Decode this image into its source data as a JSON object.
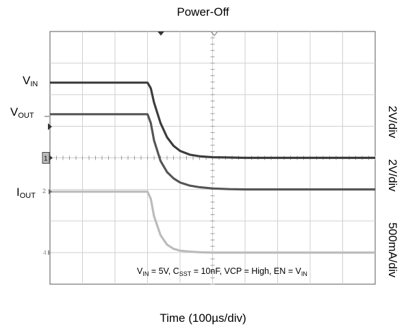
{
  "chart_data": {
    "type": "line",
    "title": "Power-Off",
    "xlabel": "Time (100µs/div)",
    "ylabel": "",
    "grid": true,
    "divisions": {
      "x": 10,
      "y": 8
    },
    "x": [
      0,
      0.5,
      1,
      1.5,
      2,
      2.5,
      3,
      3.1,
      3.2,
      3.4,
      3.6,
      3.8,
      4.0,
      4.3,
      4.6,
      5.0,
      5.5,
      6,
      7,
      8,
      9,
      10
    ],
    "xlim": [
      0,
      10
    ],
    "ylim": [
      -4,
      4
    ],
    "series": [
      {
        "name": "VIN",
        "scale": "2V/div",
        "color": "#3c3c3c",
        "zero_div": 0,
        "values": [
          2.38,
          2.38,
          2.38,
          2.38,
          2.38,
          2.38,
          2.38,
          2.2,
          1.75,
          1.1,
          0.65,
          0.38,
          0.22,
          0.1,
          0.05,
          0.02,
          0.01,
          0,
          0,
          0,
          0,
          0
        ]
      },
      {
        "name": "VOUT",
        "scale": "2V/div",
        "color": "#555555",
        "zero_div": -1,
        "values": [
          1.38,
          1.38,
          1.38,
          1.38,
          1.38,
          1.38,
          1.38,
          1.1,
          0.55,
          -0.1,
          -0.45,
          -0.65,
          -0.78,
          -0.88,
          -0.93,
          -0.97,
          -0.99,
          -1,
          -1,
          -1,
          -1,
          -1
        ]
      },
      {
        "name": "IOUT",
        "scale": "500mA/div",
        "color": "#bbbbbb",
        "zero_div": -3,
        "values": [
          -1.07,
          -1.07,
          -1.07,
          -1.07,
          -1.07,
          -1.07,
          -1.07,
          -1.3,
          -1.85,
          -2.45,
          -2.75,
          -2.88,
          -2.94,
          -2.97,
          -2.99,
          -3,
          -3,
          -3,
          -3,
          -3,
          -3,
          -3
        ]
      }
    ]
  },
  "labels": {
    "vin": {
      "main": "V",
      "sub": "IN"
    },
    "vout": {
      "main": "V",
      "sub": "OUT"
    },
    "iout": {
      "main": "I",
      "sub": "OUT"
    }
  },
  "scales": [
    "2V/div",
    "2V/div",
    "500mA/div"
  ],
  "conditions": {
    "p1": "V",
    "p1_sub": "IN",
    "p2": " = 5V, C",
    "p2_sub": "SST",
    "p3": " = 10nF, VCP = High, EN = V",
    "p3_sub": "IN"
  },
  "markers": {
    "ch1": "1",
    "ch2": "2",
    "ch4": "4"
  }
}
